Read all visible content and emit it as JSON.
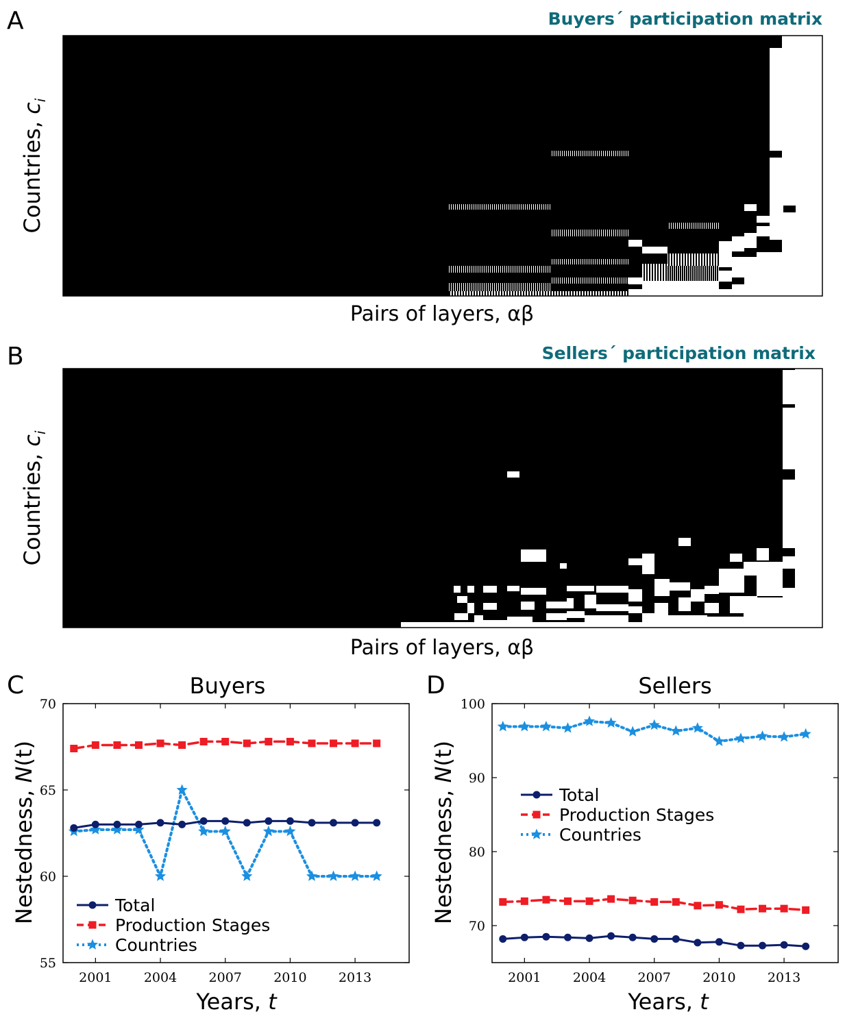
{
  "panels": {
    "a": {
      "letter": "A",
      "title": "Buyers´ participation matrix",
      "xlabel": "Pairs of layers, αβ",
      "ylabel": "Countries,",
      "ylabel_var": "c",
      "ylabel_sub": "i"
    },
    "b": {
      "letter": "B",
      "title": "Sellers´ participation matrix",
      "xlabel": "Pairs of layers, αβ",
      "ylabel": "Countries,",
      "ylabel_var": "c",
      "ylabel_sub": "i"
    },
    "c": {
      "letter": "C"
    },
    "d": {
      "letter": "D"
    }
  },
  "colors": {
    "title_teal": "#0f6b7a",
    "total": "#0d1f6b",
    "production": "#ee1c24",
    "countries": "#1b8fe0",
    "matrix_fill": "#000000"
  },
  "chart_data": [
    {
      "type": "heatmap",
      "panel": "A",
      "title": "Buyers´ participation matrix",
      "xlabel": "Pairs of layers, αβ",
      "ylabel": "Countries, c_i"
    },
    {
      "type": "heatmap",
      "panel": "B",
      "title": "Sellers´ participation matrix",
      "xlabel": "Pairs of layers, αβ",
      "ylabel": "Countries, c_i"
    },
    {
      "type": "line",
      "panel": "C",
      "title": "Buyers",
      "xlabel": "Years,",
      "xlabel_var": "t",
      "ylabel": "Nestedness,",
      "ylabel_var": "N",
      "ylabel_arg": "(t)",
      "xlim": [
        1999.5,
        2015.5
      ],
      "ylim": [
        55,
        70
      ],
      "xticks": [
        2001,
        2004,
        2007,
        2010,
        2013
      ],
      "yticks": [
        55,
        60,
        65,
        70
      ],
      "legend_position": "bottom-left",
      "x": [
        2000,
        2001,
        2002,
        2003,
        2004,
        2005,
        2006,
        2007,
        2008,
        2009,
        2010,
        2011,
        2012,
        2013,
        2014
      ],
      "series": [
        {
          "name": "Total",
          "style": "solid-circle",
          "values": [
            62.8,
            63.0,
            63.0,
            63.0,
            63.1,
            63.0,
            63.2,
            63.2,
            63.1,
            63.2,
            63.2,
            63.1,
            63.1,
            63.1,
            63.1
          ]
        },
        {
          "name": "Production Stages",
          "style": "dashed-square",
          "values": [
            67.4,
            67.6,
            67.6,
            67.6,
            67.7,
            67.6,
            67.8,
            67.8,
            67.7,
            67.8,
            67.8,
            67.7,
            67.7,
            67.7,
            67.7
          ]
        },
        {
          "name": "Countries",
          "style": "dotted-star",
          "values": [
            62.6,
            62.7,
            62.7,
            62.7,
            60.0,
            65.0,
            62.6,
            62.6,
            60.0,
            62.6,
            62.6,
            60.0,
            60.0,
            60.0,
            60.0
          ]
        }
      ]
    },
    {
      "type": "line",
      "panel": "D",
      "title": "Sellers",
      "xlabel": "Years,",
      "xlabel_var": "t",
      "ylabel": "Nestedness,",
      "ylabel_var": "N",
      "ylabel_arg": "(t)",
      "xlim": [
        1999.5,
        2015.5
      ],
      "ylim": [
        65,
        100
      ],
      "xticks": [
        2001,
        2004,
        2007,
        2010,
        2013
      ],
      "yticks": [
        70,
        80,
        90,
        100
      ],
      "legend_position": "center-left",
      "x": [
        2000,
        2001,
        2002,
        2003,
        2004,
        2005,
        2006,
        2007,
        2008,
        2009,
        2010,
        2011,
        2012,
        2013,
        2014
      ],
      "series": [
        {
          "name": "Total",
          "style": "solid-circle",
          "values": [
            68.2,
            68.4,
            68.5,
            68.4,
            68.3,
            68.6,
            68.4,
            68.2,
            68.2,
            67.7,
            67.8,
            67.3,
            67.3,
            67.4,
            67.2
          ]
        },
        {
          "name": "Production Stages",
          "style": "dashed-square",
          "values": [
            73.2,
            73.3,
            73.5,
            73.3,
            73.3,
            73.6,
            73.4,
            73.2,
            73.2,
            72.7,
            72.8,
            72.2,
            72.3,
            72.3,
            72.1
          ]
        },
        {
          "name": "Countries",
          "style": "dotted-star",
          "values": [
            96.9,
            96.9,
            96.9,
            96.7,
            97.6,
            97.4,
            96.2,
            97.1,
            96.3,
            96.7,
            94.9,
            95.3,
            95.6,
            95.5,
            95.9
          ]
        }
      ]
    }
  ]
}
